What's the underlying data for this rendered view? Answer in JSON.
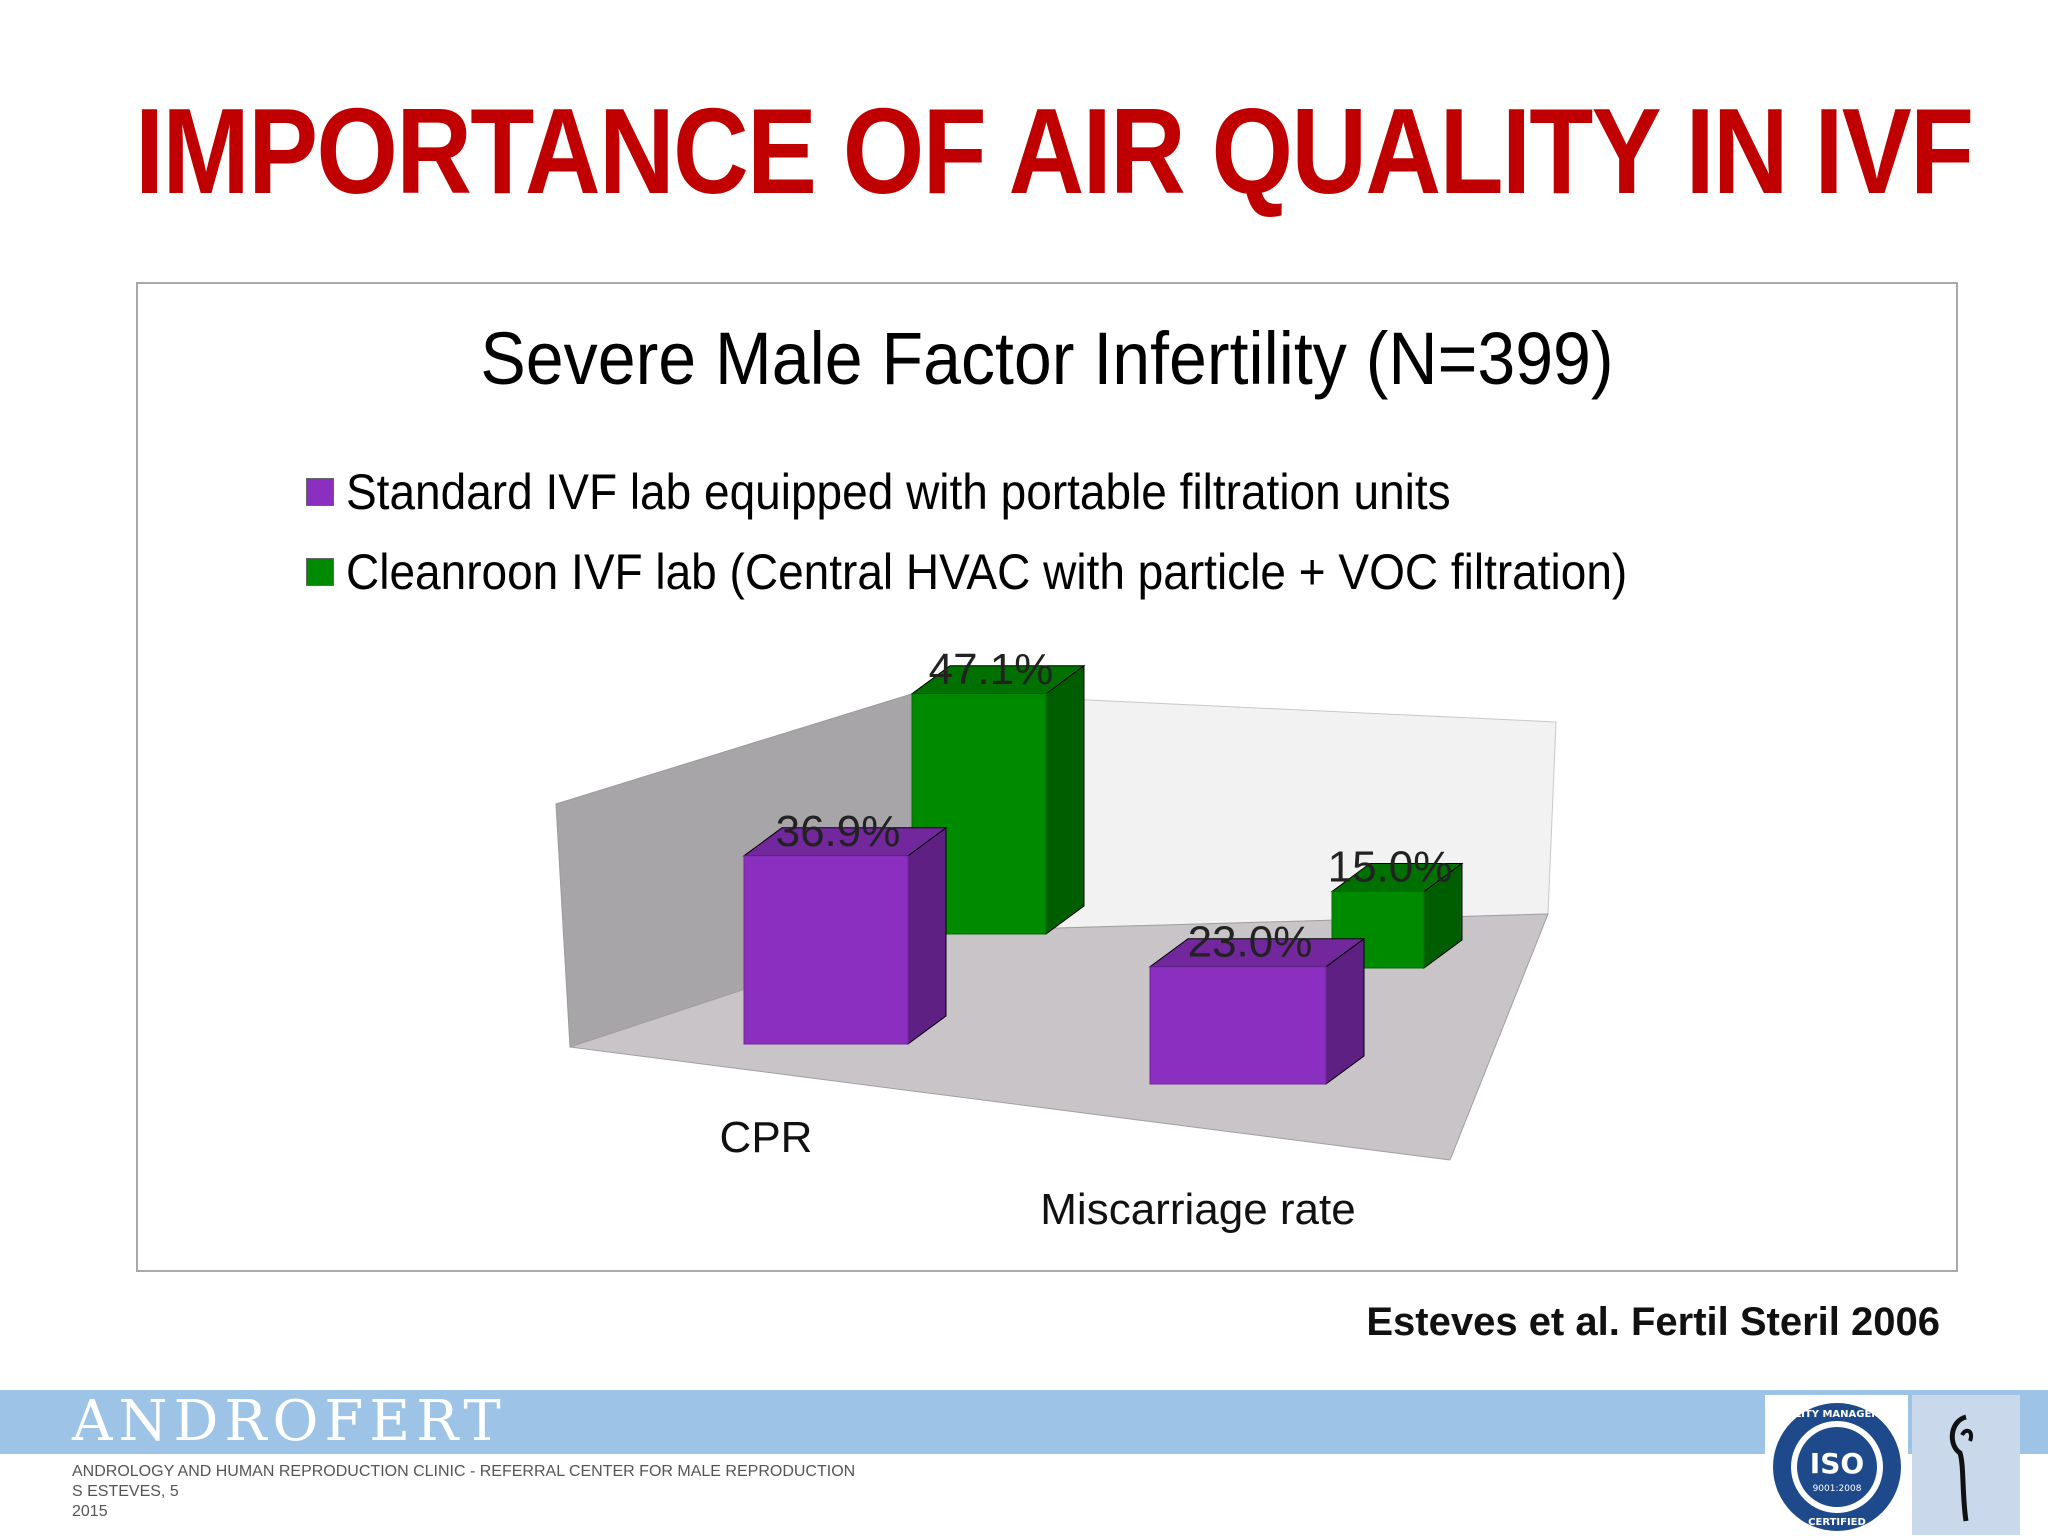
{
  "slide": {
    "title": "IMPORTANCE OF AIR QUALITY IN IVF",
    "source": "Esteves et al. Fertil Steril 2006"
  },
  "chart_data": {
    "type": "bar",
    "title": "Severe Male Factor Infertility (N=399)",
    "categories": [
      "CPR",
      "Miscarriage rate"
    ],
    "series": [
      {
        "name": "Standard IVF lab equipped with portable filtration units",
        "values": [
          36.9,
          23.0
        ],
        "labels": [
          "36.9%",
          "23.0%"
        ],
        "color": "#8b2fc0"
      },
      {
        "name": "Cleanroon IVF lab (Central HVAC with particle + VOC filtration)",
        "values": [
          47.1,
          15.0
        ],
        "labels": [
          "47.1%",
          "15.0%"
        ],
        "color": "#008a00"
      }
    ],
    "xlabel": "",
    "ylabel": "",
    "ylim": [
      0,
      50
    ],
    "legend_position": "top",
    "style": "3d-column",
    "grid": false
  },
  "footer": {
    "brand": "ANDROFERT",
    "line1": "ANDROLOGY AND HUMAN REPRODUCTION CLINIC - REFERRAL CENTER FOR MALE REPRODUCTION",
    "line2": "S ESTEVES, 5",
    "line3": "2015",
    "iso_text": "ISO",
    "iso_standard": "9001:2008",
    "iso_top": "QUALITY MANAGEMENT",
    "iso_bottom": "CERTIFIED"
  }
}
